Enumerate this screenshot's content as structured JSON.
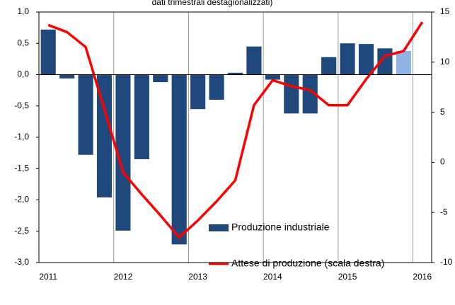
{
  "chart_data": {
    "type": "bar_line",
    "title": "dati trimestrali destagionalizzati)",
    "categories": [
      "2011",
      null,
      null,
      null,
      "2012",
      null,
      null,
      null,
      "2013",
      null,
      null,
      null,
      "2014",
      null,
      null,
      null,
      "2015",
      null,
      null,
      null,
      "2016"
    ],
    "series": [
      {
        "name": "Produzione industriale",
        "type": "bar",
        "color": "#1f497d",
        "highlight_color": "#8db4e2",
        "highlight_index": 19,
        "values": [
          0.72,
          -0.06,
          -1.28,
          -1.96,
          -2.49,
          -1.35,
          -0.12,
          -2.71,
          -0.55,
          -0.4,
          0.03,
          0.45,
          -0.08,
          -0.62,
          -0.62,
          0.28,
          0.5,
          0.49,
          0.42,
          0.38,
          null
        ]
      },
      {
        "name": "Attese di produzione (scala destra)",
        "type": "line",
        "axis": "y2",
        "color": "#ff0000",
        "values": [
          13.7,
          13.0,
          11.5,
          5.3,
          -1.0,
          -3.2,
          -5.3,
          -7.5,
          -5.8,
          -3.9,
          -1.8,
          5.7,
          8.2,
          7.6,
          7.2,
          5.7,
          5.7,
          8.3,
          10.6,
          11.1,
          14.0
        ]
      }
    ],
    "ylim": [
      -3.0,
      1.0
    ],
    "yticks": [
      {
        "value": 1.0,
        "label": "1,0"
      },
      {
        "value": 0.5,
        "label": "0,5"
      },
      {
        "value": 0.0,
        "label": "0,0"
      },
      {
        "value": -0.5,
        "label": "-0,5"
      },
      {
        "value": -1.0,
        "label": "-1,0"
      },
      {
        "value": -1.5,
        "label": "-1,5"
      },
      {
        "value": -2.0,
        "label": "-2,0"
      },
      {
        "value": -2.5,
        "label": "-2,5"
      },
      {
        "value": -3.0,
        "label": "-3,0"
      }
    ],
    "y2lim": [
      -10,
      15
    ],
    "y2ticks": [
      15,
      10,
      5,
      0,
      -5,
      -10
    ],
    "xgrid": true
  }
}
